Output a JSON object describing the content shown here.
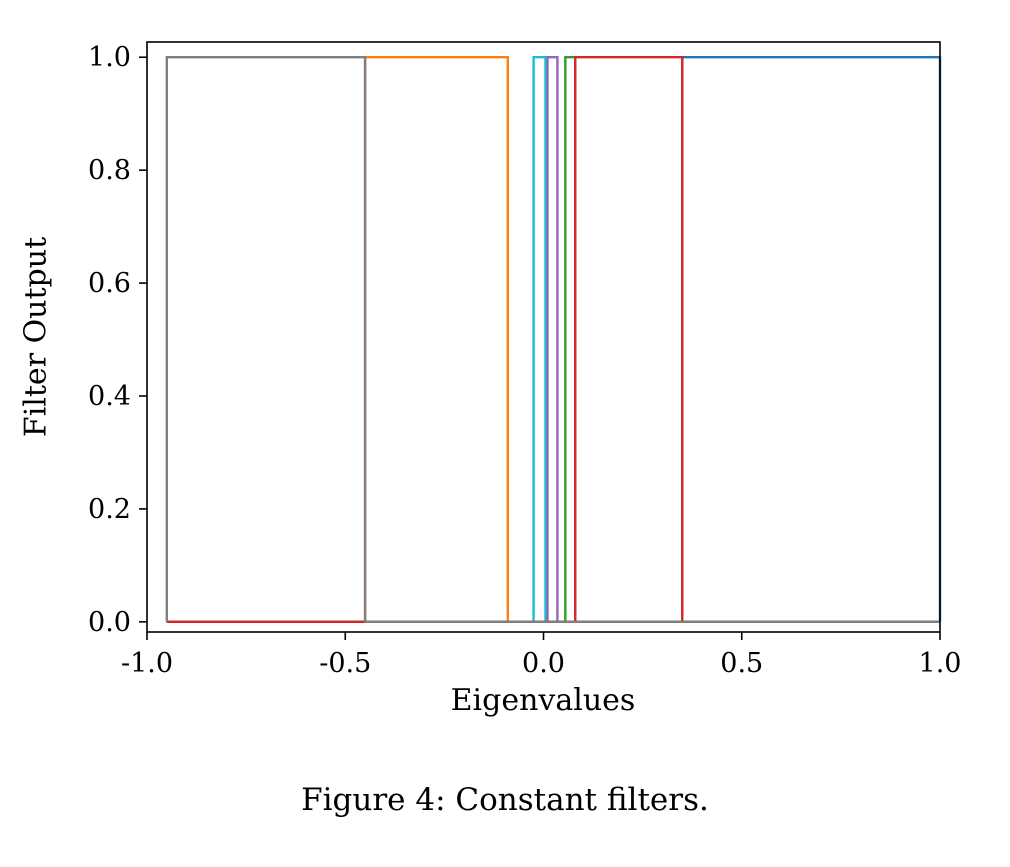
{
  "figure": {
    "caption": "Figure 4: Constant filters."
  },
  "chart_data": {
    "type": "line",
    "subtype": "indicator-step-functions",
    "title": "",
    "xlabel": "Eigenvalues",
    "ylabel": "Filter Output",
    "xlim": [
      -1.0,
      1.0
    ],
    "ylim": [
      0.0,
      1.0
    ],
    "grid": false,
    "legend": "none",
    "xticks": [
      "-1.0",
      "-0.5",
      "0.0",
      "0.5",
      "1.0"
    ],
    "xtick_values": [
      -1.0,
      -0.5,
      0.0,
      0.5,
      1.0
    ],
    "yticks": [
      "0.0",
      "0.2",
      "0.4",
      "0.6",
      "0.8",
      "1.0"
    ],
    "ytick_values": [
      0.0,
      0.2,
      0.4,
      0.6,
      0.8,
      1.0
    ],
    "data_x_range": [
      -0.95,
      1.0
    ],
    "description": "Each series is a constant (rectangular) filter equal to 1 on its eigenvalue interval and 0 elsewhere",
    "series": [
      {
        "name": "blue-filter",
        "color": "#1f77b4",
        "interval": [
          0.35,
          1.0
        ],
        "low_value": 0,
        "high_value": 1
      },
      {
        "name": "orange-filter",
        "color": "#ff7f0e",
        "interval": [
          -0.45,
          -0.09
        ],
        "low_value": 0,
        "high_value": 1
      },
      {
        "name": "cyan-filter",
        "color": "#17becf",
        "interval": [
          -0.025,
          0.005
        ],
        "low_value": 0,
        "high_value": 1
      },
      {
        "name": "purple-filter",
        "color": "#9467bd",
        "interval": [
          0.01,
          0.035
        ],
        "low_value": 0,
        "high_value": 1
      },
      {
        "name": "green-filter",
        "color": "#2ca02c",
        "interval": [
          0.055,
          0.08
        ],
        "low_value": 0,
        "high_value": 1
      },
      {
        "name": "red-filter",
        "color": "#d62728",
        "interval": [
          0.08,
          0.35
        ],
        "low_value": 0,
        "high_value": 1
      },
      {
        "name": "gray-filter",
        "color": "#7f7f7f",
        "interval": [
          -0.95,
          -0.45
        ],
        "low_value": 0,
        "high_value": 1
      }
    ]
  }
}
